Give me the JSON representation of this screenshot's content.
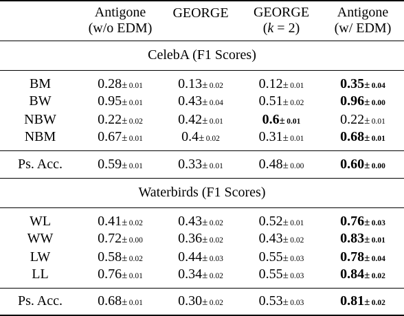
{
  "header": {
    "col1": [
      "Antigone",
      "(w/o EDM)"
    ],
    "col2": [
      "GEORGE",
      ""
    ],
    "col3": [
      "GEORGE",
      "(k = 2)"
    ],
    "col4": [
      "Antigone",
      "(w/ EDM)"
    ]
  },
  "sections": [
    {
      "title": "CelebA (F1 Scores)",
      "rows": [
        {
          "label": "BM",
          "cells": [
            {
              "v": "0.28",
              "pm": "0.01",
              "bold": false
            },
            {
              "v": "0.13",
              "pm": "0.02",
              "bold": false
            },
            {
              "v": "0.12",
              "pm": "0.01",
              "bold": false
            },
            {
              "v": "0.35",
              "pm": "0.04",
              "bold": true
            }
          ]
        },
        {
          "label": "BW",
          "cells": [
            {
              "v": "0.95",
              "pm": "0.01",
              "bold": false
            },
            {
              "v": "0.43",
              "pm": "0.04",
              "bold": false
            },
            {
              "v": "0.51",
              "pm": "0.02",
              "bold": false
            },
            {
              "v": "0.96",
              "pm": "0.00",
              "bold": true
            }
          ]
        },
        {
          "label": "NBW",
          "cells": [
            {
              "v": "0.22",
              "pm": "0.02",
              "bold": false
            },
            {
              "v": "0.42",
              "pm": "0.01",
              "bold": false
            },
            {
              "v": "0.6",
              "pm": "0.01",
              "bold": true
            },
            {
              "v": "0.22",
              "pm": "0.01",
              "bold": false
            }
          ]
        },
        {
          "label": "NBM",
          "cells": [
            {
              "v": "0.67",
              "pm": "0.01",
              "bold": false
            },
            {
              "v": "0.4",
              "pm": "0.02",
              "bold": false
            },
            {
              "v": "0.31",
              "pm": "0.01",
              "bold": false
            },
            {
              "v": "0.68",
              "pm": "0.01",
              "bold": true
            }
          ]
        }
      ],
      "acc": {
        "label": "Ps. Acc.",
        "cells": [
          {
            "v": "0.59",
            "pm": "0.01",
            "bold": false
          },
          {
            "v": "0.33",
            "pm": "0.01",
            "bold": false
          },
          {
            "v": "0.48",
            "pm": "0.00",
            "bold": false
          },
          {
            "v": "0.60",
            "pm": "0.00",
            "bold": true
          }
        ]
      }
    },
    {
      "title": "Waterbirds (F1 Scores)",
      "rows": [
        {
          "label": "WL",
          "cells": [
            {
              "v": "0.41",
              "pm": "0.02",
              "bold": false
            },
            {
              "v": "0.43",
              "pm": "0.02",
              "bold": false
            },
            {
              "v": "0.52",
              "pm": "0.01",
              "bold": false
            },
            {
              "v": "0.76",
              "pm": "0.03",
              "bold": true
            }
          ]
        },
        {
          "label": "WW",
          "cells": [
            {
              "v": "0.72",
              "pm": "0.00",
              "bold": false
            },
            {
              "v": "0.36",
              "pm": "0.02",
              "bold": false
            },
            {
              "v": "0.43",
              "pm": "0.02",
              "bold": false
            },
            {
              "v": "0.83",
              "pm": "0.01",
              "bold": true
            }
          ]
        },
        {
          "label": "LW",
          "cells": [
            {
              "v": "0.58",
              "pm": "0.02",
              "bold": false
            },
            {
              "v": "0.44",
              "pm": "0.03",
              "bold": false
            },
            {
              "v": "0.55",
              "pm": "0.03",
              "bold": false
            },
            {
              "v": "0.78",
              "pm": "0.04",
              "bold": true
            }
          ]
        },
        {
          "label": "LL",
          "cells": [
            {
              "v": "0.76",
              "pm": "0.01",
              "bold": false
            },
            {
              "v": "0.34",
              "pm": "0.02",
              "bold": false
            },
            {
              "v": "0.55",
              "pm": "0.03",
              "bold": false
            },
            {
              "v": "0.84",
              "pm": "0.02",
              "bold": true
            }
          ]
        }
      ],
      "acc": {
        "label": "Ps. Acc.",
        "cells": [
          {
            "v": "0.68",
            "pm": "0.01",
            "bold": false
          },
          {
            "v": "0.30",
            "pm": "0.02",
            "bold": false
          },
          {
            "v": "0.53",
            "pm": "0.03",
            "bold": false
          },
          {
            "v": "0.81",
            "pm": "0.02",
            "bold": true
          }
        ]
      }
    }
  ]
}
